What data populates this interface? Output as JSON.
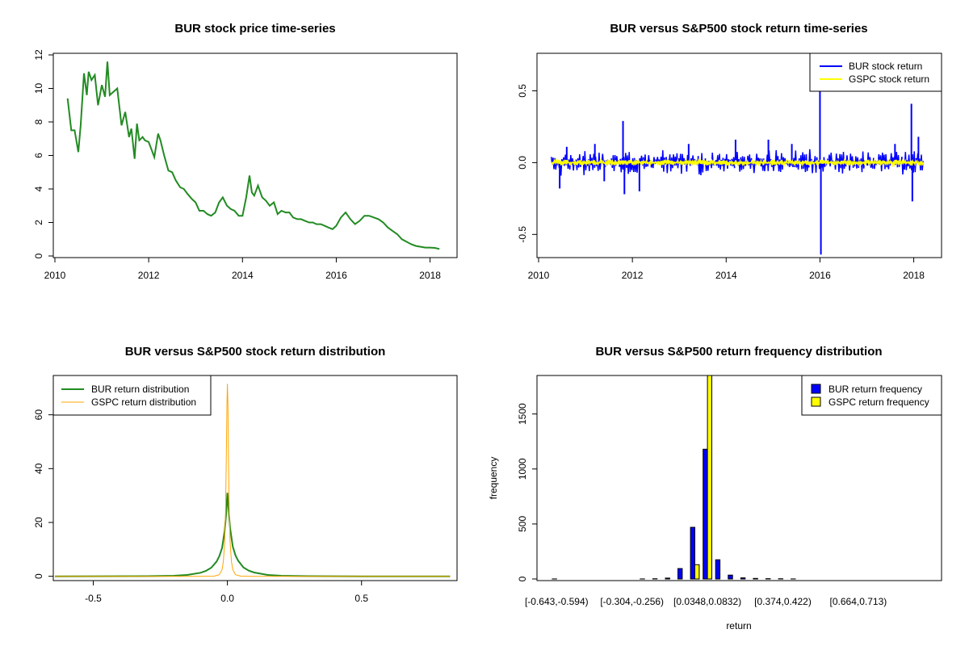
{
  "chart_data": [
    {
      "type": "line",
      "title": "BUR stock price time-series",
      "xlabel": "",
      "ylabel": "",
      "xlim": [
        2010,
        2018.3
      ],
      "ylim": [
        0,
        12
      ],
      "x_ticks": [
        "2010",
        "2012",
        "2014",
        "2016",
        "2018"
      ],
      "y_ticks": [
        "0",
        "2",
        "4",
        "6",
        "8",
        "10",
        "12"
      ],
      "colors": {
        "price": "#228B22"
      },
      "series": [
        {
          "x": [
            2010.27,
            2010.35,
            2010.42,
            2010.5,
            2010.55,
            2010.62,
            2010.68,
            2010.72,
            2010.78,
            2010.85,
            2010.92,
            2011.0,
            2011.07,
            2011.12,
            2011.17,
            2011.25,
            2011.33,
            2011.42,
            2011.5,
            2011.58,
            2011.63,
            2011.7,
            2011.75,
            2011.8,
            2011.87,
            2011.92,
            2012.0,
            2012.08,
            2012.12,
            2012.2,
            2012.25,
            2012.33,
            2012.42,
            2012.5,
            2012.58,
            2012.67,
            2012.75,
            2012.83,
            2012.92,
            2013.0,
            2013.08,
            2013.17,
            2013.25,
            2013.33,
            2013.42,
            2013.5,
            2013.58,
            2013.67,
            2013.75,
            2013.83,
            2013.92,
            2014.0,
            2014.08,
            2014.15,
            2014.2,
            2014.25,
            2014.33,
            2014.42,
            2014.5,
            2014.58,
            2014.67,
            2014.75,
            2014.83,
            2014.92,
            2015.0,
            2015.08,
            2015.17,
            2015.25,
            2015.33,
            2015.42,
            2015.5,
            2015.58,
            2015.67,
            2015.75,
            2015.83,
            2015.92,
            2016.0,
            2016.1,
            2016.2,
            2016.3,
            2016.4,
            2016.5,
            2016.6,
            2016.7,
            2016.8,
            2016.9,
            2017.0,
            2017.1,
            2017.2,
            2017.3,
            2017.4,
            2017.5,
            2017.6,
            2017.7,
            2017.8,
            2017.9,
            2018.0,
            2018.1,
            2018.2
          ],
          "y": [
            9.4,
            7.5,
            7.5,
            6.2,
            7.8,
            10.9,
            9.6,
            11.0,
            10.5,
            10.8,
            9.0,
            10.2,
            9.5,
            11.6,
            9.6,
            9.8,
            10.0,
            7.8,
            8.6,
            7.1,
            7.6,
            5.8,
            7.9,
            6.9,
            7.1,
            6.9,
            6.8,
            6.2,
            5.9,
            7.3,
            6.9,
            6.0,
            5.1,
            5.0,
            4.5,
            4.1,
            4.0,
            3.7,
            3.4,
            3.2,
            2.7,
            2.7,
            2.5,
            2.4,
            2.6,
            3.2,
            3.5,
            3.0,
            2.8,
            2.7,
            2.4,
            2.4,
            3.5,
            4.8,
            3.8,
            3.6,
            4.2,
            3.5,
            3.3,
            3.0,
            3.2,
            2.5,
            2.7,
            2.6,
            2.6,
            2.3,
            2.2,
            2.2,
            2.1,
            2.0,
            2.0,
            1.9,
            1.9,
            1.8,
            1.7,
            1.6,
            1.8,
            2.3,
            2.6,
            2.2,
            1.9,
            2.1,
            2.4,
            2.4,
            2.3,
            2.2,
            2.0,
            1.7,
            1.5,
            1.3,
            1.0,
            0.85,
            0.7,
            0.6,
            0.55,
            0.5,
            0.5,
            0.48,
            0.42
          ]
        }
      ]
    },
    {
      "type": "line",
      "title": "BUR versus S&P500 stock return time-series",
      "xlabel": "",
      "ylabel": "",
      "xlim": [
        2010,
        2018.3
      ],
      "ylim": [
        -0.65,
        0.75
      ],
      "x_ticks": [
        "2010",
        "2012",
        "2014",
        "2016",
        "2018"
      ],
      "y_ticks": [
        "-0.5",
        "0.0",
        "0.5"
      ],
      "legend_position": "top-right",
      "legend": [
        {
          "label": "BUR stock return",
          "color": "#0000FF"
        },
        {
          "label": "GSPC stock return",
          "color": "#FFFF00"
        }
      ],
      "spikes": [
        {
          "x": 2010.45,
          "y": -0.18
        },
        {
          "x": 2010.6,
          "y": 0.11
        },
        {
          "x": 2011.2,
          "y": 0.13
        },
        {
          "x": 2011.4,
          "y": -0.13
        },
        {
          "x": 2011.8,
          "y": 0.29
        },
        {
          "x": 2011.83,
          "y": -0.22
        },
        {
          "x": 2012.15,
          "y": -0.2
        },
        {
          "x": 2013.2,
          "y": 0.13
        },
        {
          "x": 2014.2,
          "y": 0.16
        },
        {
          "x": 2014.9,
          "y": 0.16
        },
        {
          "x": 2015.4,
          "y": 0.13
        },
        {
          "x": 2016.0,
          "y": 0.6
        },
        {
          "x": 2016.02,
          "y": -0.64
        },
        {
          "x": 2017.6,
          "y": 0.13
        },
        {
          "x": 2017.95,
          "y": 0.41
        },
        {
          "x": 2017.97,
          "y": -0.27
        },
        {
          "x": 2018.1,
          "y": 0.18
        }
      ]
    },
    {
      "type": "line",
      "title": "BUR versus S&P500 stock return distribution",
      "xlabel": "",
      "ylabel": "",
      "xlim": [
        -0.643,
        0.85
      ],
      "ylim": [
        -1,
        74
      ],
      "x_ticks": [
        "-0.5",
        "0.0",
        "0.5"
      ],
      "y_ticks": [
        "0",
        "20",
        "40",
        "60"
      ],
      "legend_position": "top-left",
      "legend": [
        {
          "label": "BUR return distribution",
          "color": "#228B22"
        },
        {
          "label": "GSPC return distribution",
          "color": "#FFA500"
        }
      ],
      "series": [
        {
          "name": "BUR return distribution",
          "x": [
            -0.643,
            -0.3,
            -0.2,
            -0.15,
            -0.1,
            -0.08,
            -0.06,
            -0.04,
            -0.03,
            -0.02,
            -0.01,
            -0.005,
            0,
            0.005,
            0.01,
            0.02,
            0.03,
            0.04,
            0.06,
            0.08,
            0.1,
            0.15,
            0.2,
            0.3,
            0.5,
            0.83
          ],
          "y": [
            0,
            0.05,
            0.2,
            0.5,
            1.3,
            2.0,
            3.2,
            5.5,
            7.5,
            10.5,
            17,
            23,
            31,
            24,
            18,
            11,
            7.8,
            5.8,
            3.3,
            2.1,
            1.4,
            0.5,
            0.2,
            0.05,
            0,
            0
          ]
        },
        {
          "name": "GSPC return distribution",
          "x": [
            -0.643,
            -0.1,
            -0.05,
            -0.03,
            -0.02,
            -0.015,
            -0.01,
            -0.007,
            -0.004,
            -0.002,
            0,
            0.002,
            0.004,
            0.007,
            0.01,
            0.015,
            0.02,
            0.03,
            0.05,
            0.1,
            0.83
          ],
          "y": [
            0,
            0,
            0.05,
            0.6,
            2.5,
            5.5,
            13,
            24,
            45,
            63,
            71.5,
            63,
            45,
            24,
            13,
            5.5,
            2.5,
            0.6,
            0.05,
            0,
            0
          ]
        }
      ]
    },
    {
      "type": "bar",
      "title": "BUR versus S&P500 return frequency distribution",
      "xlabel": "return",
      "ylabel": "frequency",
      "ylim": [
        0,
        1850
      ],
      "y_ticks": [
        "0",
        "500",
        "1000",
        "1500"
      ],
      "tick_labels": [
        "[-0.643,-0.594)",
        "[-0.304,-0.256)",
        "[0.0348,0.0832)",
        "[0.374,0.422)",
        "[0.664,0.713)"
      ],
      "legend_position": "top-right",
      "legend": [
        {
          "label": "BUR return frequency",
          "color": "#0000FF"
        },
        {
          "label": "GSPC return frequency",
          "color": "#FFFF00"
        }
      ],
      "series": [
        {
          "name": "BUR return frequency",
          "values": [
            1,
            0,
            0,
            0,
            0,
            0,
            0,
            1,
            2,
            8,
            95,
            470,
            1180,
            175,
            35,
            10,
            5,
            3,
            2,
            1,
            0,
            0,
            0,
            0,
            0,
            0,
            0,
            0,
            0,
            0
          ]
        },
        {
          "name": "GSPC return frequency",
          "values": [
            0,
            0,
            0,
            0,
            0,
            0,
            0,
            0,
            0,
            0,
            0,
            130,
            1900,
            0,
            0,
            0,
            0,
            0,
            0,
            0,
            0,
            0,
            0,
            0,
            0,
            0,
            0,
            0,
            0,
            0
          ]
        }
      ]
    }
  ]
}
